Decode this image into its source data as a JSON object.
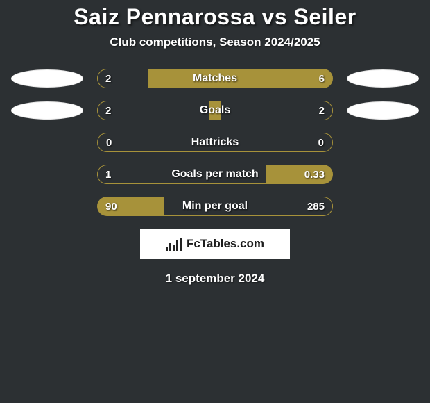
{
  "title": "Saiz Pennarossa vs Seiler",
  "subtitle": "Club competitions, Season 2024/2025",
  "date": "1 september 2024",
  "footer_brand": "FcTables.com",
  "colors": {
    "background": "#2c3033",
    "bar_track": "#a7923a",
    "bar_fill": "#2c3033",
    "text": "#ffffff",
    "footer_bg": "#ffffff",
    "footer_text": "#1d1d1d"
  },
  "typography": {
    "title_fontsize": 32,
    "subtitle_fontsize": 17,
    "bar_label_fontsize": 16,
    "bar_value_fontsize": 15,
    "footer_fontsize": 17,
    "date_fontsize": 17
  },
  "bar_style": {
    "track_width": 340,
    "track_height": 28,
    "border_radius": 14
  },
  "rows": [
    {
      "label": "Matches",
      "left_val": "2",
      "right_val": "6",
      "left_pct": 22,
      "right_pct": 0,
      "show_ovals": true
    },
    {
      "label": "Goals",
      "left_val": "2",
      "right_val": "2",
      "left_pct": 48,
      "right_pct": 48,
      "show_ovals": true
    },
    {
      "label": "Hattricks",
      "left_val": "0",
      "right_val": "0",
      "left_pct": 100,
      "right_pct": 0,
      "show_ovals": false
    },
    {
      "label": "Goals per match",
      "left_val": "1",
      "right_val": "0.33",
      "left_pct": 72,
      "right_pct": 0,
      "show_ovals": false
    },
    {
      "label": "Min per goal",
      "left_val": "90",
      "right_val": "285",
      "left_pct": 0,
      "right_pct": 72,
      "show_ovals": false
    }
  ]
}
